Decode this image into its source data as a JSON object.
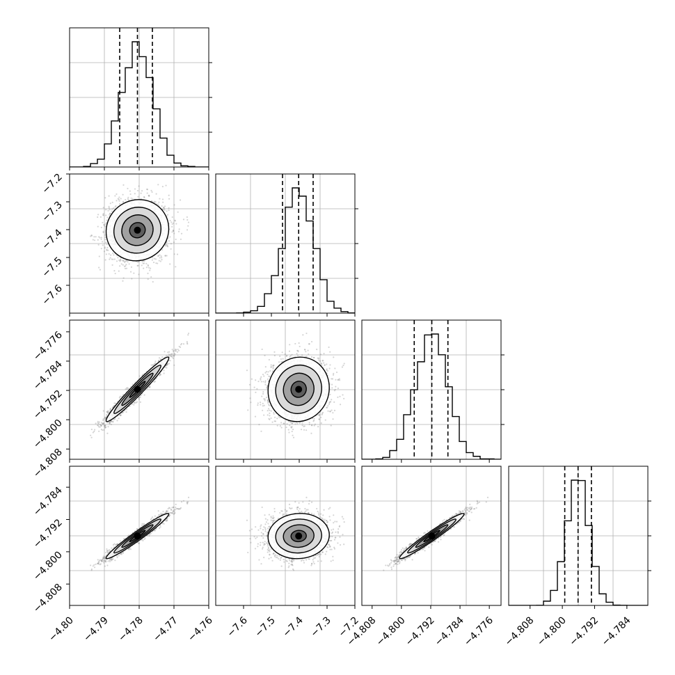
{
  "chart_data": {
    "type": "corner",
    "description_of_marks": "histograms on diagonal, 2D density contours with scatter off-diagonal",
    "params": [
      {
        "name": "",
        "range": [
          -4.8,
          -4.76
        ],
        "ticks": [
          -4.8,
          -4.79,
          -4.78,
          -4.77,
          -4.76
        ],
        "tick_labels": [
          "−4.80",
          "−4.79",
          "−4.78",
          "−4.77",
          "−4.76"
        ],
        "mean": -4.7805,
        "sd": 0.0045,
        "quantiles": [
          -4.7856,
          -4.7805,
          -4.7762
        ]
      },
      {
        "name": "",
        "range": [
          -7.7,
          -7.2
        ],
        "ticks": [
          -7.6,
          -7.5,
          -7.4,
          -7.3,
          -7.2
        ],
        "tick_labels": [
          "−7.6",
          "−7.5",
          "−7.4",
          "−7.3",
          "−7.2"
        ],
        "mean": -7.402,
        "sd": 0.055,
        "quantiles": [
          -7.46,
          -7.402,
          -7.35
        ]
      },
      {
        "name": "",
        "range": [
          -4.8108,
          -4.7728
        ],
        "ticks": [
          -4.808,
          -4.8,
          -4.792,
          -4.784,
          -4.776
        ],
        "tick_labels": [
          "−4.808",
          "−4.800",
          "−4.792",
          "−4.784",
          "−4.776"
        ],
        "mean": -4.7917,
        "sd": 0.0044,
        "quantiles": [
          -4.7965,
          -4.7917,
          -4.7873
        ]
      },
      {
        "name": "",
        "range": [
          -4.8133,
          -4.7788
        ],
        "ticks": [
          -4.808,
          -4.8,
          -4.792,
          -4.784
        ],
        "tick_labels": [
          "−4.808",
          "−4.800",
          "−4.792",
          "−4.784"
        ],
        "mean": -4.7961,
        "sd": 0.0028,
        "quantiles": [
          -4.7994,
          -4.7961,
          -4.7928
        ]
      }
    ],
    "correlations": [
      [
        1,
        0.05,
        0.97,
        0.97
      ],
      [
        0.05,
        1,
        0.05,
        0.05
      ],
      [
        0.97,
        0.05,
        1,
        0.97
      ],
      [
        0.97,
        0.05,
        0.97,
        1
      ]
    ],
    "grid": true,
    "quantile_lines": "dashed",
    "colors": {
      "line": "#000000",
      "grid": "#b0b0b0",
      "scatter": "#888888"
    }
  }
}
